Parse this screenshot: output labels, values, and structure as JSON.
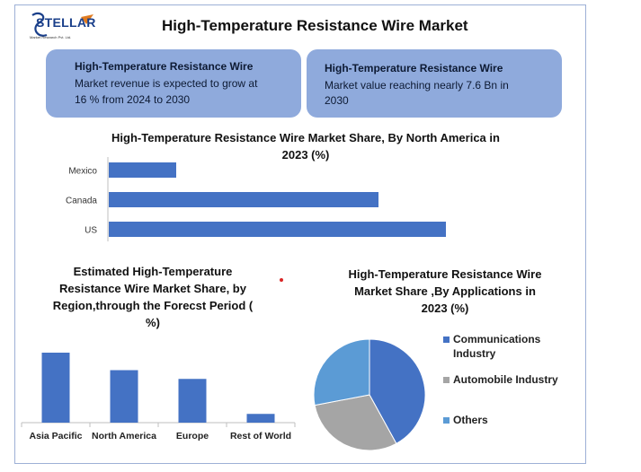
{
  "logo": {
    "text": "STELLAR",
    "subtitle": "Market Research Pvt. Ltd."
  },
  "title": "High-Temperature Resistance Wire Market",
  "info_boxes": [
    {
      "title": "High-Temperature Resistance Wire",
      "line1": "Market revenue is expected to grow at",
      "line2": "16 % from 2024 to 2030"
    },
    {
      "title": "High-Temperature Resistance Wire",
      "line1": "Market value reaching nearly 7.6 Bn in",
      "line2": "2030"
    }
  ],
  "colors": {
    "bar": "#4472c4",
    "communications": "#4472c4",
    "automobile": "#a5a5a5",
    "others": "#5b9bd5",
    "info_box": "#8faadc"
  },
  "chart_data": [
    {
      "type": "bar",
      "orientation": "horizontal",
      "title_line1": "High-Temperature Resistance Wire Market Share, By North America in",
      "title_line2": "2023 (%)",
      "categories": [
        "Mexico",
        "Canada",
        "US"
      ],
      "values": [
        10,
        40,
        50
      ]
    },
    {
      "type": "bar",
      "title_line1": "Estimated High-Temperature",
      "title_line2": "Resistance Wire Market Share, by",
      "title_line3": "Region,through the Forecst Period (",
      "title_line4": "%)",
      "categories": [
        "Asia Pacific",
        "North America",
        "Europe",
        "Rest of World"
      ],
      "values": [
        40,
        30,
        25,
        5
      ]
    },
    {
      "type": "pie",
      "title_line1": "High-Temperature Resistance Wire",
      "title_line2": "Market Share ,By Applications  in",
      "title_line3": "2023 (%)",
      "slices": [
        {
          "label_line1": "Communications",
          "label_line2": "Industry",
          "value": 42,
          "color": "#4472c4"
        },
        {
          "label_line1": "Automobile Industry",
          "label_line2": "",
          "value": 30,
          "color": "#a5a5a5"
        },
        {
          "label_line1": "Others",
          "label_line2": "",
          "value": 28,
          "color": "#5b9bd5"
        }
      ],
      "legend_position": "right"
    }
  ]
}
